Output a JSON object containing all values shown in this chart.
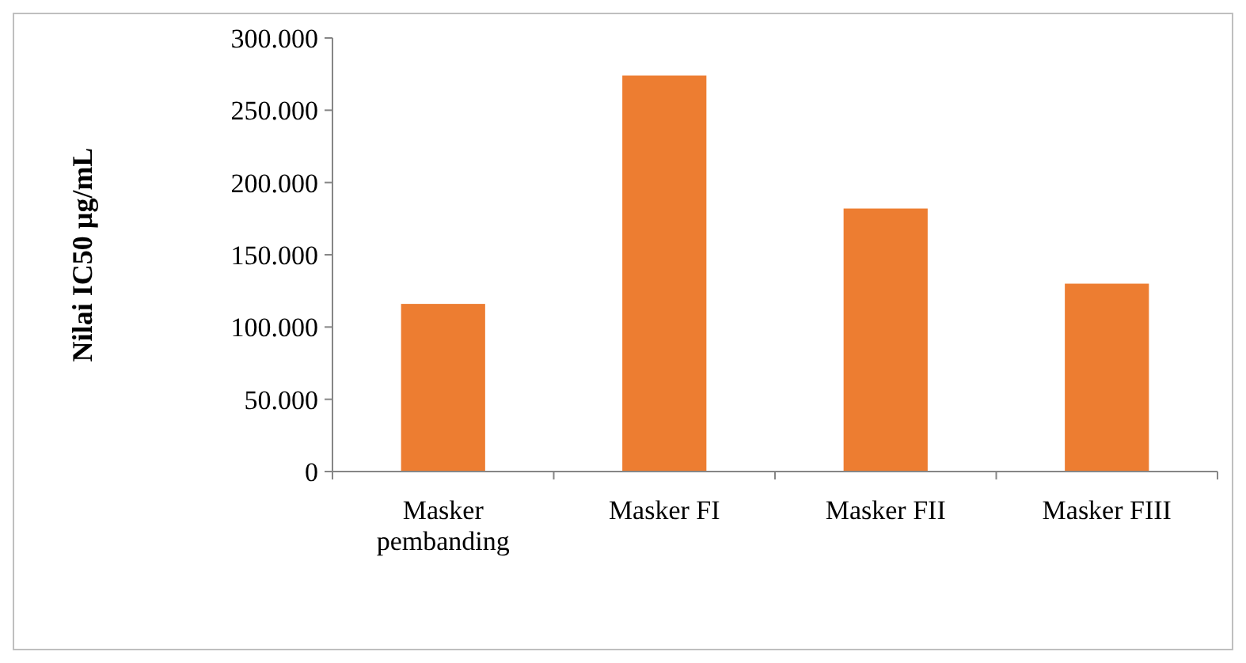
{
  "chart_data": {
    "type": "bar",
    "ylabel": "Nilai IC50  µg/mL",
    "categories": [
      "Masker pembanding",
      "Masker FI",
      "Masker FII",
      "Masker FIII"
    ],
    "values": [
      116000,
      274000,
      182000,
      130000
    ],
    "color": "#ed7d31",
    "ylim": [
      0,
      300000
    ],
    "yticks": [
      0,
      {
        "value": 50000,
        "label": "50.000"
      },
      {
        "value": 100000,
        "label": "100.000"
      },
      {
        "value": 150000,
        "label": "150.000"
      },
      {
        "value": 200000,
        "label": "200.000"
      },
      {
        "value": 250000,
        "label": "250.000"
      },
      {
        "value": 300000,
        "label": "300.000"
      }
    ],
    "grid": false
  }
}
